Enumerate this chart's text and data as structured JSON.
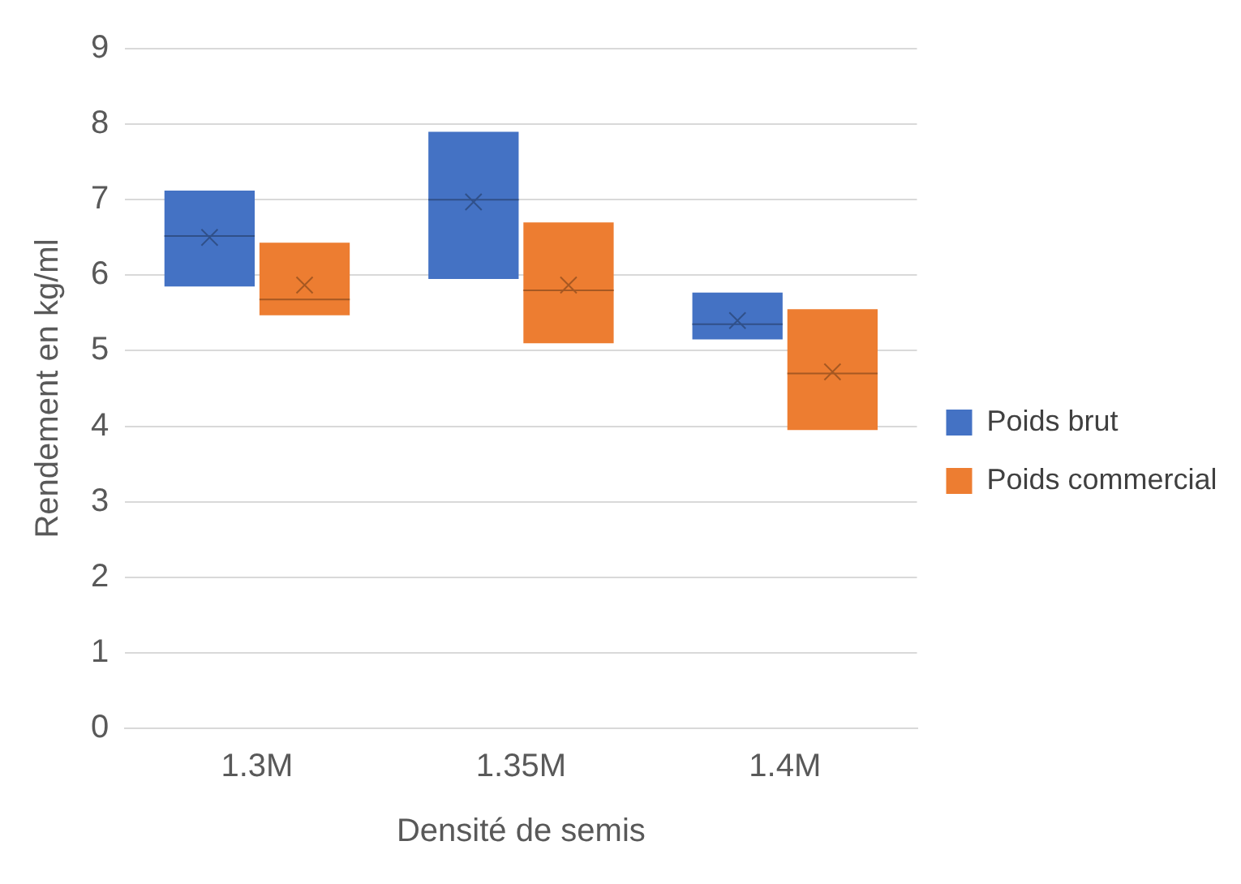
{
  "chart_data": {
    "type": "box",
    "xlabel": "Densité de semis",
    "ylabel": "Rendement en kg/ml",
    "categories": [
      "1.3M",
      "1.35M",
      "1.4M"
    ],
    "ylim": [
      0,
      9
    ],
    "yticks": [
      0,
      1,
      2,
      3,
      4,
      5,
      6,
      7,
      8,
      9
    ],
    "grid": "y",
    "legend": "right",
    "series": [
      {
        "name": "Poids brut",
        "color": "#4472c4",
        "boxes": [
          {
            "low": 5.85,
            "q1": 5.85,
            "median": 6.52,
            "q3": 7.12,
            "high": 7.12,
            "mean": 6.5
          },
          {
            "low": 5.95,
            "q1": 5.95,
            "median": 7.0,
            "q3": 7.9,
            "high": 7.9,
            "mean": 6.97
          },
          {
            "low": 5.15,
            "q1": 5.15,
            "median": 5.35,
            "q3": 5.77,
            "high": 5.77,
            "mean": 5.4
          }
        ]
      },
      {
        "name": "Poids commercial",
        "color": "#ed7d31",
        "boxes": [
          {
            "low": 5.47,
            "q1": 5.47,
            "median": 5.68,
            "q3": 6.43,
            "high": 6.43,
            "mean": 5.87
          },
          {
            "low": 5.1,
            "q1": 5.1,
            "median": 5.8,
            "q3": 6.7,
            "high": 6.7,
            "mean": 5.87
          },
          {
            "low": 3.95,
            "q1": 3.95,
            "median": 4.7,
            "q3": 5.55,
            "high": 5.55,
            "mean": 4.72
          }
        ]
      }
    ]
  }
}
